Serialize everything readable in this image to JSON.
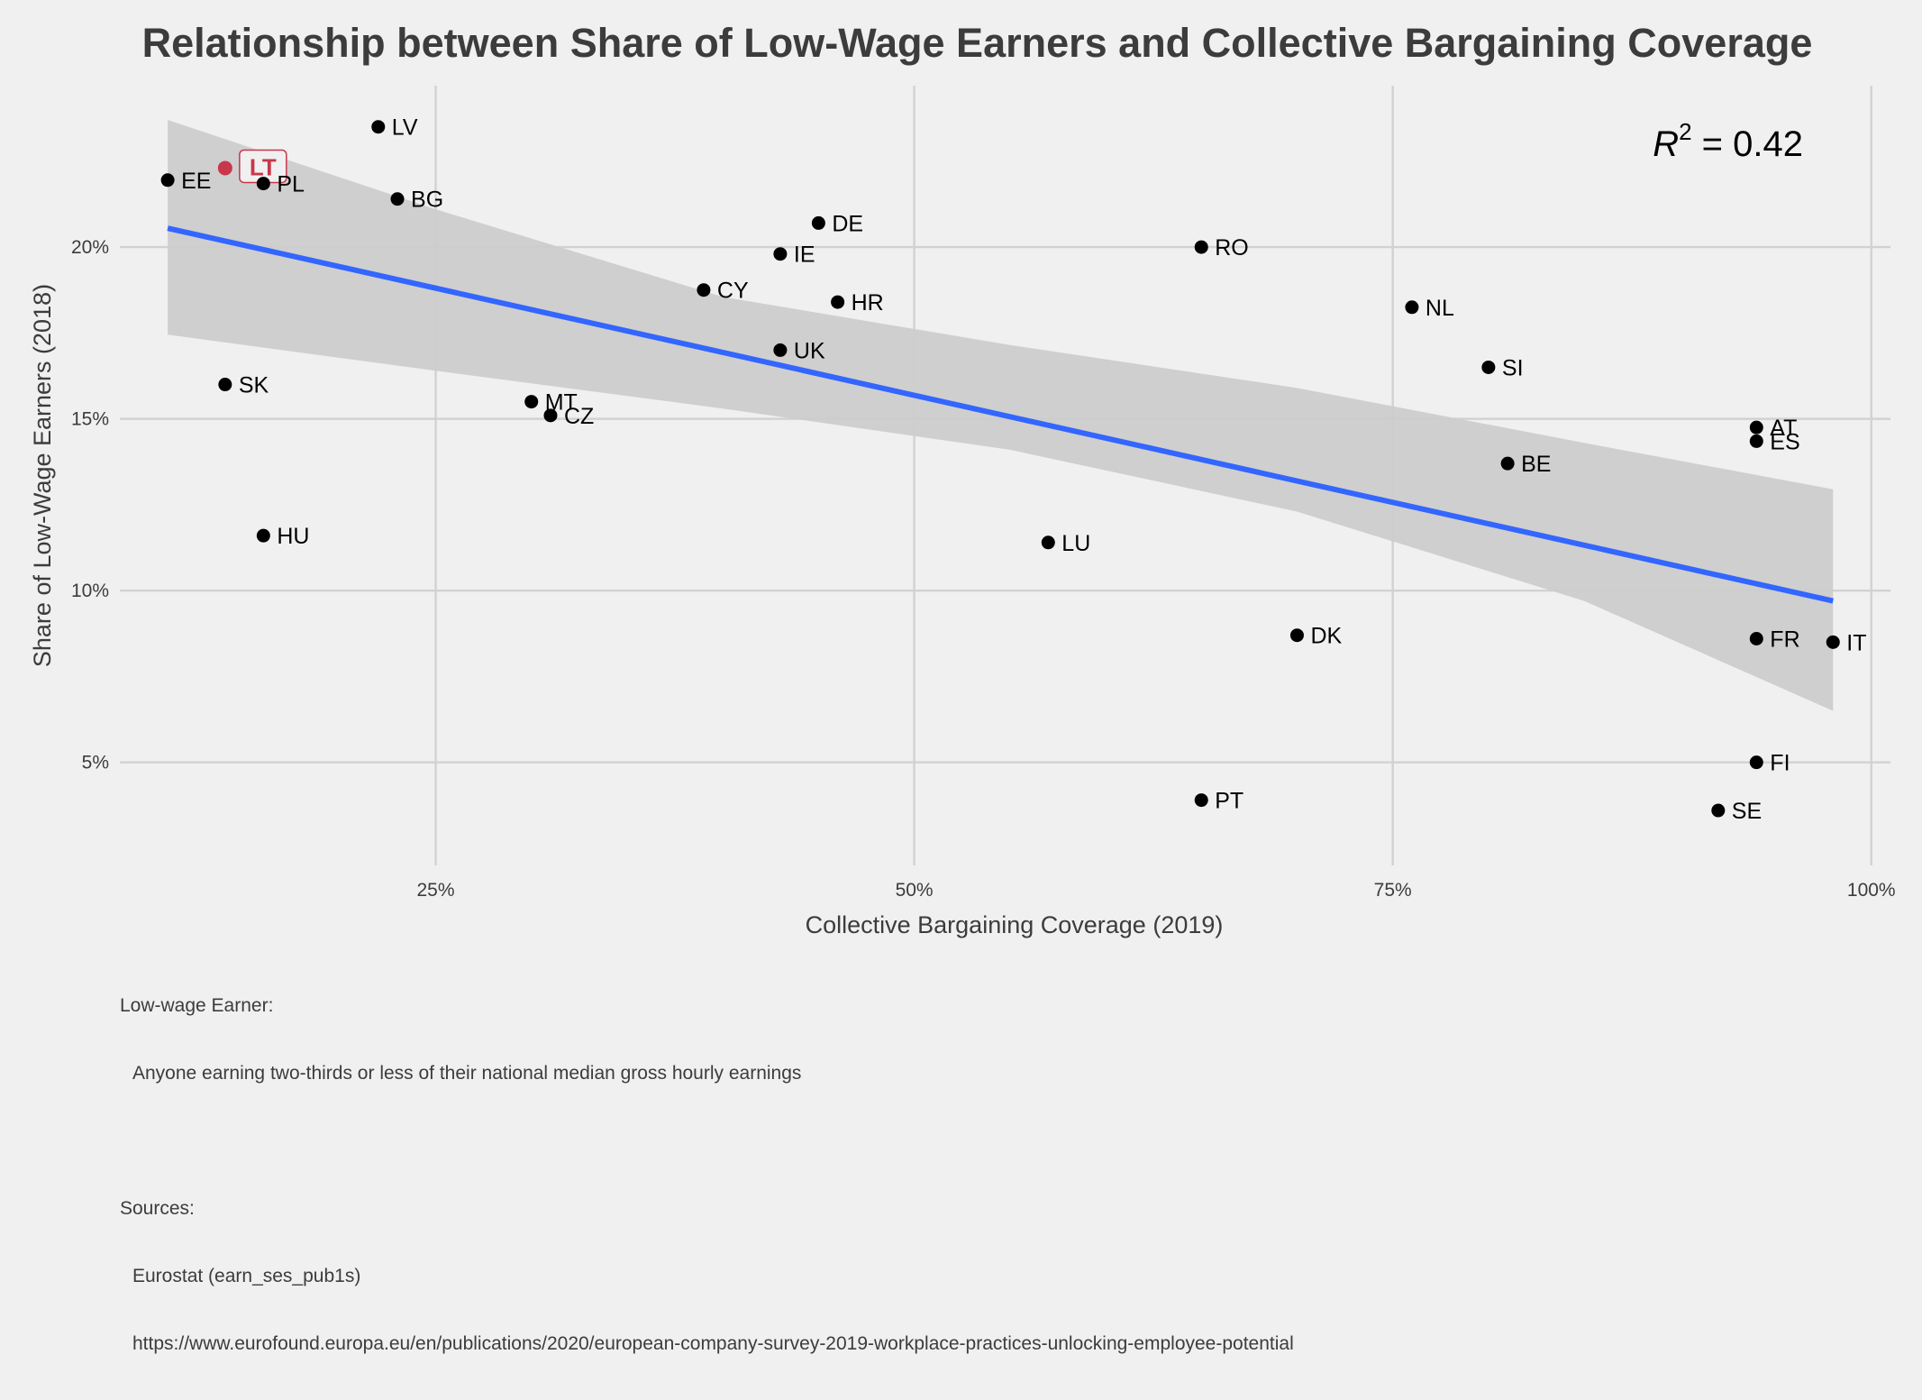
{
  "chart_data": {
    "type": "scatter",
    "title": "Relationship between Share of Low-Wage Earners and Collective Bargaining Coverage",
    "xlabel": "Collective Bargaining Coverage (2019)",
    "ylabel": "Share of Low-Wage Earners (2018)",
    "xlim": [
      8.5,
      101
    ],
    "ylim": [
      2.0,
      24.7
    ],
    "x_ticks": [
      25,
      50,
      75,
      100
    ],
    "x_tick_labels": [
      "25%",
      "50%",
      "75%",
      "100%"
    ],
    "y_ticks": [
      5,
      10,
      15,
      20
    ],
    "y_tick_labels": [
      "5%",
      "10%",
      "15%",
      "20%"
    ],
    "grid": true,
    "annotation": {
      "lhs": "R",
      "exp": "2",
      "rhs": " = 0.42"
    },
    "highlight": {
      "label": "LT",
      "color": "#c8374a"
    },
    "point_color": "#000000",
    "trend_color": "#3366ff",
    "band_color": "#cccccc",
    "points": [
      {
        "label": "LV",
        "x": 22,
        "y": 23.5
      },
      {
        "label": "LT",
        "x": 14,
        "y": 22.3
      },
      {
        "label": "EE",
        "x": 11,
        "y": 21.95
      },
      {
        "label": "PL",
        "x": 16,
        "y": 21.85
      },
      {
        "label": "BG",
        "x": 23,
        "y": 21.4
      },
      {
        "label": "DE",
        "x": 45,
        "y": 20.7
      },
      {
        "label": "RO",
        "x": 65,
        "y": 20.0
      },
      {
        "label": "IE",
        "x": 43,
        "y": 19.8
      },
      {
        "label": "CY",
        "x": 39,
        "y": 18.75
      },
      {
        "label": "HR",
        "x": 46,
        "y": 18.4
      },
      {
        "label": "NL",
        "x": 76,
        "y": 18.25
      },
      {
        "label": "UK",
        "x": 43,
        "y": 17.0
      },
      {
        "label": "SI",
        "x": 80,
        "y": 16.5
      },
      {
        "label": "SK",
        "x": 14,
        "y": 16.0
      },
      {
        "label": "MT",
        "x": 30,
        "y": 15.5
      },
      {
        "label": "CZ",
        "x": 31,
        "y": 15.1
      },
      {
        "label": "AT",
        "x": 94,
        "y": 14.75
      },
      {
        "label": "ES",
        "x": 94,
        "y": 14.35
      },
      {
        "label": "BE",
        "x": 81,
        "y": 13.7
      },
      {
        "label": "HU",
        "x": 16,
        "y": 11.6
      },
      {
        "label": "LU",
        "x": 57,
        "y": 11.4
      },
      {
        "label": "DK",
        "x": 70,
        "y": 8.7
      },
      {
        "label": "FR",
        "x": 94,
        "y": 8.6
      },
      {
        "label": "IT",
        "x": 98,
        "y": 8.5
      },
      {
        "label": "FI",
        "x": 94,
        "y": 5.0
      },
      {
        "label": "PT",
        "x": 65,
        "y": 3.9
      },
      {
        "label": "SE",
        "x": 92,
        "y": 3.6
      }
    ],
    "trend": {
      "x": [
        11,
        98
      ],
      "y": [
        20.55,
        9.7
      ]
    },
    "ci_band": {
      "x": [
        11,
        25,
        40,
        55,
        70,
        85,
        98
      ],
      "lo": [
        17.45,
        16.4,
        15.3,
        14.1,
        12.3,
        9.7,
        6.5
      ],
      "hi": [
        23.7,
        21.1,
        18.55,
        17.15,
        15.9,
        14.3,
        12.95
      ]
    }
  },
  "caption": {
    "def_head": "Low-wage Earner:",
    "def_body": "Anyone earning two-thirds or less of their national median gross hourly earnings",
    "src_head": "Sources:",
    "src_1": "Eurostat (earn_ses_pub1s)",
    "src_2": "https://www.eurofound.europa.eu/en/publications/2020/european-company-survey-2019-workplace-practices-unlocking-employee-potential"
  }
}
